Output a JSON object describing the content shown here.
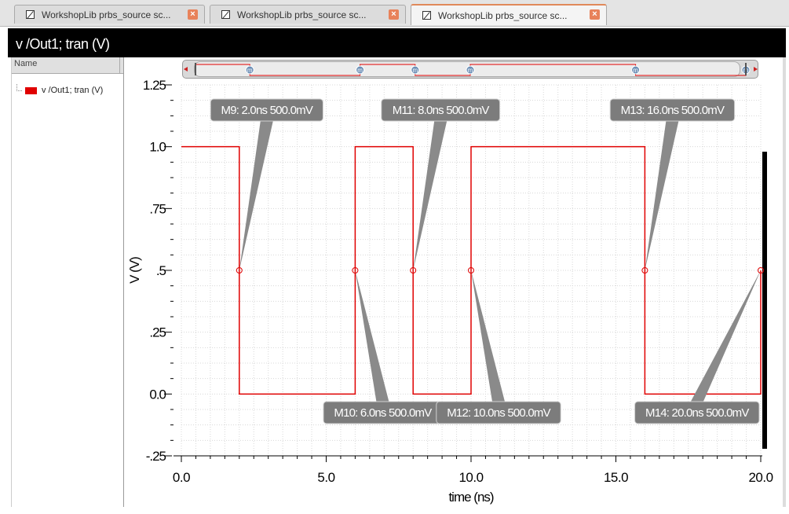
{
  "tabs": [
    {
      "label": "WorkshopLib prbs_source sc...",
      "active": false
    },
    {
      "label": "WorkshopLib prbs_source sc...",
      "active": false
    },
    {
      "label": "WorkshopLib prbs_source sc...",
      "active": true
    }
  ],
  "tab_close_glyph": "×",
  "window_title": "v /Out1; tran (V)",
  "left_panel": {
    "header": "Name",
    "items": [
      {
        "label": "v /Out1; tran (V)",
        "color": "#e00000"
      }
    ]
  },
  "icons": [
    "document-icon",
    "close-icon",
    "scroll-left-arrow-icon",
    "scroll-right-arrow-icon",
    "marker-m-icon"
  ],
  "chart_data": {
    "type": "line",
    "xlabel": "time (ns)",
    "ylabel": "V (V)",
    "xlim": [
      0,
      20
    ],
    "ylim": [
      -0.25,
      1.25
    ],
    "x_ticks": [
      {
        "value": 0,
        "label": "0.0"
      },
      {
        "value": 5,
        "label": "5.0"
      },
      {
        "value": 10,
        "label": "10.0"
      },
      {
        "value": 15,
        "label": "15.0"
      },
      {
        "value": 20,
        "label": "20.0"
      }
    ],
    "y_ticks": [
      {
        "value": 1.25,
        "label": "1.25"
      },
      {
        "value": 1.0,
        "label": "1.0"
      },
      {
        "value": 0.75,
        "label": ".75"
      },
      {
        "value": 0.5,
        "label": ".5"
      },
      {
        "value": 0.25,
        "label": ".25"
      },
      {
        "value": 0.0,
        "label": "0.0"
      },
      {
        "value": -0.25,
        "label": "-.25"
      }
    ],
    "grid": true,
    "series": [
      {
        "name": "v /Out1; tran (V)",
        "color": "#e00000",
        "x": [
          0,
          2,
          2,
          6,
          6,
          8,
          8,
          10,
          10,
          16,
          16,
          20,
          20
        ],
        "y": [
          1,
          1,
          0,
          0,
          1,
          1,
          0,
          0,
          1,
          1,
          0,
          0,
          0.5
        ]
      }
    ],
    "markers": [
      {
        "name": "M9",
        "x": 2.0,
        "y": 0.5,
        "label": "M9: 2.0ns 500.0mV",
        "side": "top"
      },
      {
        "name": "M10",
        "x": 6.0,
        "y": 0.5,
        "label": "M10: 6.0ns 500.0mV",
        "side": "bottom"
      },
      {
        "name": "M11",
        "x": 8.0,
        "y": 0.5,
        "label": "M11: 8.0ns 500.0mV",
        "side": "top"
      },
      {
        "name": "M12",
        "x": 10.0,
        "y": 0.5,
        "label": "M12: 10.0ns 500.0mV",
        "side": "bottom"
      },
      {
        "name": "M13",
        "x": 16.0,
        "y": 0.5,
        "label": "M13: 16.0ns 500.0mV",
        "side": "top"
      },
      {
        "name": "M14",
        "x": 20.0,
        "y": 0.5,
        "label": "M14: 20.0ns 500.0mV",
        "side": "bottom"
      }
    ],
    "scroll_marker_glyph": "m"
  }
}
